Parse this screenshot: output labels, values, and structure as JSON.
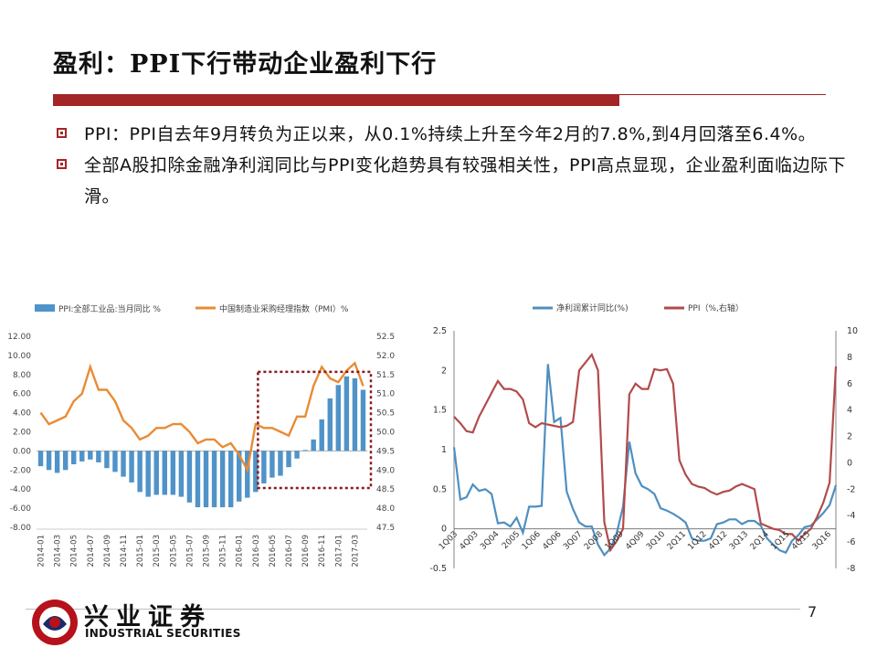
{
  "slide": {
    "title": "盈利：PPI下行带动企业盈利下行",
    "bullets": [
      "PPI：PPI自去年9月转负为正以来，从0.1%持续上升至今年2月的7.8%,到4月回落至6.4%。",
      "全部A股扣除金融净利润同比与PPI变化趋势具有较强相关性，PPI高点显现，企业盈利面临边际下滑。"
    ],
    "page_number": "7",
    "logo_cn": "兴业证券",
    "logo_en": "INDUSTRIAL SECURITIES",
    "accent_color": "#a42526"
  },
  "chart_data": [
    {
      "type": "bar+line",
      "legend": [
        "PPI:全部工业品:当月同比 %",
        "中国制造业采购经理指数（PMI）%"
      ],
      "left_ylim": [
        -8,
        12
      ],
      "left_ticks": [
        "12.00",
        "10.00",
        "8.00",
        "6.00",
        "4.00",
        "2.00",
        "0.00",
        "-2.00",
        "-4.00",
        "-6.00",
        "-8.00"
      ],
      "right_ylim": [
        47.5,
        52.5
      ],
      "right_ticks": [
        "52.5",
        "52.0",
        "51.5",
        "51.0",
        "50.5",
        "50.0",
        "49.5",
        "49.0",
        "48.5",
        "48.0",
        "47.5"
      ],
      "x_labels": [
        "2014-01",
        "2014-03",
        "2014-05",
        "2014-07",
        "2014-09",
        "2014-11",
        "2015-01",
        "2015-03",
        "2015-05",
        "2015-07",
        "2015-09",
        "2015-11",
        "2016-01",
        "2016-03",
        "2016-05",
        "2016-07",
        "2016-09",
        "2016-11",
        "2017-01",
        "2017-03"
      ],
      "ppi": [
        -1.6,
        -2.0,
        -2.3,
        -2.0,
        -1.4,
        -1.1,
        -0.9,
        -1.2,
        -1.8,
        -2.2,
        -2.7,
        -3.3,
        -4.3,
        -4.8,
        -4.6,
        -4.6,
        -4.6,
        -4.8,
        -5.4,
        -5.9,
        -5.9,
        -5.9,
        -5.9,
        -5.9,
        -5.3,
        -4.9,
        -4.3,
        -3.4,
        -2.8,
        -2.6,
        -1.7,
        -0.8,
        0.1,
        1.2,
        3.3,
        5.5,
        6.9,
        7.8,
        7.6,
        6.4
      ],
      "pmi": [
        50.5,
        50.2,
        50.3,
        50.4,
        50.8,
        51.0,
        51.7,
        51.1,
        51.1,
        50.8,
        50.3,
        50.1,
        49.8,
        49.9,
        50.1,
        50.1,
        50.2,
        50.2,
        50.0,
        49.7,
        49.8,
        49.8,
        49.6,
        49.7,
        49.4,
        49.0,
        50.2,
        50.1,
        50.1,
        50.0,
        49.9,
        50.4,
        50.4,
        51.2,
        51.7,
        51.4,
        51.3,
        51.6,
        51.8,
        51.2
      ],
      "colors": {
        "ppi": "#4f93c9",
        "pmi": "#e98b33",
        "highlight_box": "#8b1a1a"
      }
    },
    {
      "type": "line",
      "legend": [
        "净利润累计同比(%)",
        "PPI（%,右轴）"
      ],
      "left_ylim": [
        -0.5,
        2.5
      ],
      "left_ticks": [
        "2.5",
        "2",
        "1.5",
        "1",
        "0.5",
        "0",
        "-0.5"
      ],
      "right_ylim": [
        -8,
        10
      ],
      "right_ticks": [
        "10",
        "8",
        "6",
        "4",
        "2",
        "0",
        "-2",
        "-4",
        "-6",
        "-8"
      ],
      "x_labels": [
        "1Q03",
        "4Q03",
        "3Q04",
        "2005",
        "1Q06",
        "4Q06",
        "3Q07",
        "2Q08",
        "1Q09",
        "4Q09",
        "3Q10",
        "2Q11",
        "1Q12",
        "4Q12",
        "3Q13",
        "2Q14",
        "1Q15",
        "4Q15",
        "3Q16"
      ],
      "profit": [
        1.03,
        0.37,
        0.4,
        0.56,
        0.48,
        0.5,
        0.44,
        0.07,
        0.08,
        0.03,
        0.14,
        -0.05,
        0.28,
        0.28,
        0.29,
        2.08,
        1.35,
        1.4,
        0.47,
        0.25,
        0.08,
        0.03,
        0.03,
        -0.2,
        -0.33,
        -0.25,
        -0.05,
        0.28,
        1.1,
        0.7,
        0.54,
        0.5,
        0.44,
        0.26,
        0.23,
        0.19,
        0.14,
        0.08,
        -0.12,
        -0.15,
        -0.15,
        -0.12,
        0.06,
        0.08,
        0.12,
        0.12,
        0.06,
        0.1,
        0.1,
        0.04,
        -0.12,
        -0.2,
        -0.27,
        -0.3,
        -0.15,
        -0.08,
        0.02,
        0.04,
        0.12,
        0.2,
        0.3,
        0.55
      ],
      "ppi": [
        3.5,
        3.0,
        2.4,
        2.3,
        3.5,
        4.4,
        5.3,
        6.2,
        5.6,
        5.6,
        5.4,
        4.8,
        3.0,
        2.7,
        3.0,
        2.9,
        2.8,
        2.7,
        2.8,
        3.1,
        7.0,
        7.6,
        8.2,
        7.0,
        -4.5,
        -6.6,
        -5.9,
        -5.0,
        5.2,
        6.0,
        5.6,
        5.6,
        7.1,
        7.0,
        7.1,
        6.0,
        0.2,
        -0.9,
        -1.6,
        -1.8,
        -1.9,
        -2.2,
        -2.4,
        -2.2,
        -2.1,
        -1.8,
        -1.6,
        -1.8,
        -2.0,
        -4.6,
        -4.8,
        -5.0,
        -5.1,
        -5.4,
        -5.4,
        -5.9,
        -5.4,
        -5.0,
        -4.1,
        -3.0,
        -1.5,
        7.3
      ],
      "colors": {
        "profit": "#4f8fc0",
        "ppi": "#b24b4a"
      }
    }
  ]
}
